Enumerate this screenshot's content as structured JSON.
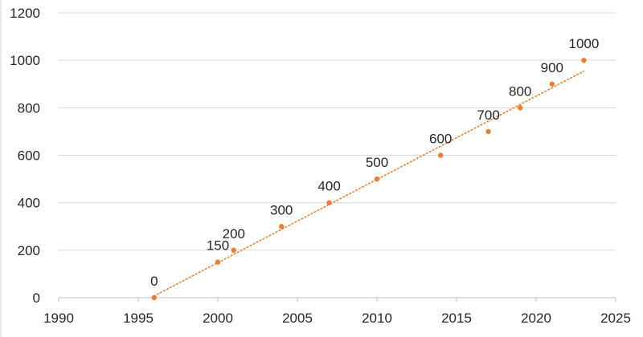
{
  "chart_data": {
    "type": "scatter",
    "title": "",
    "xlabel": "",
    "ylabel": "",
    "xlim": [
      1990,
      2025
    ],
    "ylim": [
      0,
      1200
    ],
    "x_ticks": [
      1990,
      1995,
      2000,
      2005,
      2010,
      2015,
      2020,
      2025
    ],
    "y_ticks": [
      0,
      200,
      400,
      600,
      800,
      1000,
      1200
    ],
    "grid": "horizontal",
    "legend": "none",
    "series": [
      {
        "color": "#ED7D31",
        "trendline": "linear, dotted",
        "points": [
          {
            "x": 1996,
            "y": 0,
            "label": "0"
          },
          {
            "x": 2000,
            "y": 150,
            "label": "150"
          },
          {
            "x": 2001,
            "y": 200,
            "label": "200"
          },
          {
            "x": 2004,
            "y": 300,
            "label": "300"
          },
          {
            "x": 2007,
            "y": 400,
            "label": "400"
          },
          {
            "x": 2010,
            "y": 500,
            "label": "500"
          },
          {
            "x": 2014,
            "y": 600,
            "label": "600"
          },
          {
            "x": 2017,
            "y": 700,
            "label": "700"
          },
          {
            "x": 2019,
            "y": 800,
            "label": "800"
          },
          {
            "x": 2021,
            "y": 900,
            "label": "900"
          },
          {
            "x": 2023,
            "y": 1000,
            "label": "1000"
          }
        ]
      }
    ]
  }
}
